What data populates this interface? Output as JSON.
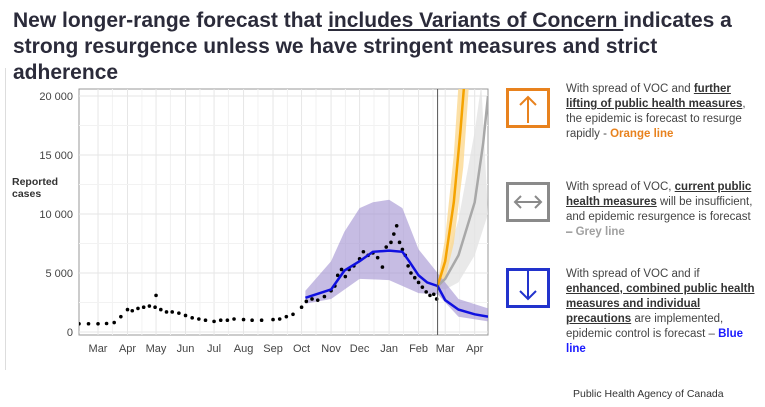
{
  "title": {
    "pre": "New longer-range forecast that ",
    "underlined": "includes Variants of Concern ",
    "post": "indicates a strong resurgence unless we have stringent measures and strict adherence"
  },
  "legend": [
    {
      "icon": "arrow-up-icon",
      "color": "#e8821e",
      "pre": "With spread of VOC and ",
      "bold": "further lifting of public health measures",
      "post": ", the epidemic is forecast to resurge rapidly - ",
      "tag": "Orange line",
      "tag_color": "#e8821e"
    },
    {
      "icon": "arrow-left-right-icon",
      "color": "#8a8a8a",
      "pre": "With spread of VOC, ",
      "bold": "current public health measures",
      "post": " will be insufficient, and epidemic resurgence is forecast – ",
      "tag": "Grey line",
      "tag_color": "#a0a0a0"
    },
    {
      "icon": "arrow-down-icon",
      "color": "#2233cc",
      "pre": "With spread of VOC and if ",
      "bold": "enhanced, combined public health measures and individual precautions",
      "post": " are implemented, epidemic control is forecast – ",
      "tag": "Blue line",
      "tag_color": "#1a1aff"
    }
  ],
  "footer": "Public Health Agency of Canada",
  "chart_data": {
    "type": "line",
    "ylabel": "Reported cases",
    "ylim": [
      0,
      20000
    ],
    "yticks": [
      0,
      5000,
      10000,
      15000,
      20000
    ],
    "ytick_labels": [
      "0",
      "5 000",
      "10 000",
      "15 000",
      "20 000"
    ],
    "xlim": [
      "2020-02-10",
      "2021-04-15"
    ],
    "xtick_labels": [
      "Mar",
      "Apr",
      "May",
      "Jun",
      "Jul",
      "Aug",
      "Sep",
      "Oct",
      "Nov",
      "Dec",
      "Jan",
      "Feb",
      "Mar",
      "Apr"
    ],
    "xticks": [
      "2020-03-01",
      "2020-04-01",
      "2020-05-01",
      "2020-06-01",
      "2020-07-01",
      "2020-08-01",
      "2020-09-01",
      "2020-10-01",
      "2020-11-01",
      "2020-12-01",
      "2021-01-01",
      "2021-02-01",
      "2021-03-01",
      "2021-04-01"
    ],
    "grid": true,
    "forecast_start": "2021-02-21",
    "colors": {
      "observed": "#000000",
      "blue": "#1010e0",
      "blue_band": "#a090d0",
      "orange": "#f5a300",
      "orange_band": "#fbd890",
      "grey": "#a8a8a8",
      "grey_band": "#e4e4e4"
    },
    "observed": [
      [
        "2020-02-10",
        700
      ],
      [
        "2020-02-20",
        700
      ],
      [
        "2020-03-01",
        700
      ],
      [
        "2020-03-10",
        720
      ],
      [
        "2020-03-18",
        800
      ],
      [
        "2020-03-25",
        1300
      ],
      [
        "2020-04-01",
        1900
      ],
      [
        "2020-04-06",
        1800
      ],
      [
        "2020-04-12",
        2000
      ],
      [
        "2020-04-18",
        2100
      ],
      [
        "2020-04-24",
        2200
      ],
      [
        "2020-04-30",
        2100
      ],
      [
        "2020-05-01",
        3100
      ],
      [
        "2020-05-06",
        1900
      ],
      [
        "2020-05-12",
        1700
      ],
      [
        "2020-05-18",
        1700
      ],
      [
        "2020-05-25",
        1600
      ],
      [
        "2020-06-01",
        1400
      ],
      [
        "2020-06-08",
        1200
      ],
      [
        "2020-06-15",
        1100
      ],
      [
        "2020-06-22",
        1000
      ],
      [
        "2020-07-01",
        900
      ],
      [
        "2020-07-08",
        1000
      ],
      [
        "2020-07-15",
        1000
      ],
      [
        "2020-07-22",
        1100
      ],
      [
        "2020-08-01",
        1050
      ],
      [
        "2020-08-10",
        1000
      ],
      [
        "2020-08-20",
        1000
      ],
      [
        "2020-09-01",
        1050
      ],
      [
        "2020-09-08",
        1100
      ],
      [
        "2020-09-15",
        1300
      ],
      [
        "2020-09-22",
        1500
      ],
      [
        "2020-10-01",
        2100
      ],
      [
        "2020-10-06",
        2600
      ],
      [
        "2020-10-12",
        2800
      ],
      [
        "2020-10-18",
        2700
      ],
      [
        "2020-10-25",
        3000
      ],
      [
        "2020-11-01",
        3500
      ],
      [
        "2020-11-05",
        3900
      ],
      [
        "2020-11-08",
        4800
      ],
      [
        "2020-11-12",
        5300
      ],
      [
        "2020-11-16",
        4700
      ],
      [
        "2020-11-20",
        5300
      ],
      [
        "2020-11-25",
        5600
      ],
      [
        "2020-12-01",
        6200
      ],
      [
        "2020-12-05",
        6800
      ],
      [
        "2020-12-10",
        6500
      ],
      [
        "2020-12-15",
        6700
      ],
      [
        "2020-12-20",
        6300
      ],
      [
        "2020-12-25",
        5500
      ],
      [
        "2020-12-29",
        7200
      ],
      [
        "2021-01-03",
        7600
      ],
      [
        "2021-01-06",
        8300
      ],
      [
        "2021-01-09",
        9000
      ],
      [
        "2021-01-12",
        7600
      ],
      [
        "2021-01-15",
        7000
      ],
      [
        "2021-01-18",
        6500
      ],
      [
        "2021-01-21",
        5600
      ],
      [
        "2021-01-24",
        5000
      ],
      [
        "2021-01-28",
        4600
      ],
      [
        "2021-02-01",
        4200
      ],
      [
        "2021-02-05",
        3800
      ],
      [
        "2021-02-09",
        3400
      ],
      [
        "2021-02-13",
        3100
      ],
      [
        "2021-02-17",
        3200
      ],
      [
        "2021-02-20",
        2800
      ]
    ],
    "series": [
      {
        "key": "blue",
        "values": [
          [
            "2020-10-05",
            2900
          ],
          [
            "2020-11-01",
            3600
          ],
          [
            "2020-11-15",
            5200
          ],
          [
            "2020-12-01",
            6000
          ],
          [
            "2020-12-15",
            6800
          ],
          [
            "2021-01-01",
            6900
          ],
          [
            "2021-01-15",
            6800
          ],
          [
            "2021-01-22",
            6000
          ],
          [
            "2021-02-01",
            4800
          ],
          [
            "2021-02-10",
            4200
          ],
          [
            "2021-02-21",
            3900
          ],
          [
            "2021-03-01",
            2700
          ],
          [
            "2021-03-15",
            1900
          ],
          [
            "2021-04-01",
            1500
          ],
          [
            "2021-04-15",
            1300
          ]
        ],
        "upper": [
          [
            "2020-10-05",
            3500
          ],
          [
            "2020-11-01",
            6000
          ],
          [
            "2020-11-15",
            8500
          ],
          [
            "2020-12-01",
            10500
          ],
          [
            "2020-12-15",
            11000
          ],
          [
            "2021-01-01",
            11200
          ],
          [
            "2021-01-15",
            10500
          ],
          [
            "2021-02-01",
            7000
          ],
          [
            "2021-02-21",
            5000
          ],
          [
            "2021-03-15",
            2800
          ],
          [
            "2021-04-15",
            2000
          ]
        ],
        "lower": [
          [
            "2020-10-05",
            2400
          ],
          [
            "2020-11-01",
            2800
          ],
          [
            "2020-12-01",
            4500
          ],
          [
            "2021-01-01",
            4400
          ],
          [
            "2021-02-01",
            3300
          ],
          [
            "2021-02-21",
            3200
          ],
          [
            "2021-03-15",
            1300
          ],
          [
            "2021-04-15",
            900
          ]
        ]
      },
      {
        "key": "grey",
        "values": [
          [
            "2021-02-21",
            3900
          ],
          [
            "2021-03-01",
            4500
          ],
          [
            "2021-03-15",
            6500
          ],
          [
            "2021-04-01",
            11000
          ],
          [
            "2021-04-10",
            16000
          ],
          [
            "2021-04-15",
            20000
          ]
        ],
        "upper": [
          [
            "2021-02-21",
            4100
          ],
          [
            "2021-03-01",
            5800
          ],
          [
            "2021-03-15",
            9500
          ],
          [
            "2021-04-01",
            17000
          ],
          [
            "2021-04-08",
            21000
          ]
        ],
        "lower": [
          [
            "2021-02-21",
            3700
          ],
          [
            "2021-03-01",
            3600
          ],
          [
            "2021-03-15",
            4200
          ],
          [
            "2021-04-01",
            6500
          ],
          [
            "2021-04-15",
            10000
          ]
        ]
      },
      {
        "key": "orange",
        "values": [
          [
            "2021-02-21",
            3900
          ],
          [
            "2021-03-01",
            6000
          ],
          [
            "2021-03-10",
            11000
          ],
          [
            "2021-03-17",
            17000
          ],
          [
            "2021-03-21",
            21000
          ]
        ],
        "upper": [
          [
            "2021-02-21",
            4200
          ],
          [
            "2021-03-01",
            8000
          ],
          [
            "2021-03-10",
            15000
          ],
          [
            "2021-03-15",
            21000
          ]
        ],
        "lower": [
          [
            "2021-02-21",
            3600
          ],
          [
            "2021-03-01",
            4500
          ],
          [
            "2021-03-10",
            7500
          ],
          [
            "2021-03-20",
            14000
          ],
          [
            "2021-03-26",
            21000
          ]
        ]
      }
    ]
  }
}
